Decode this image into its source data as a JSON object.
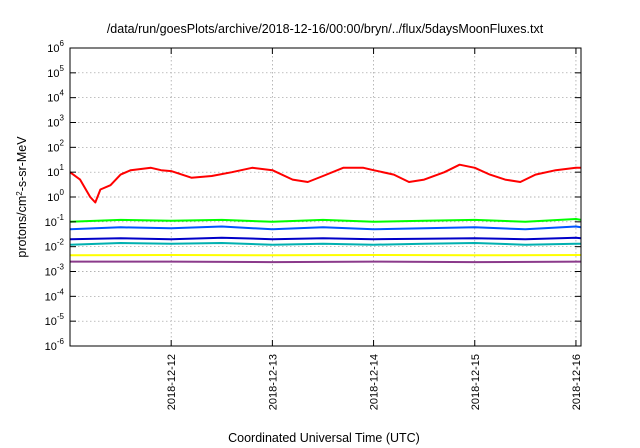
{
  "chart_data": {
    "type": "line",
    "title": "/data/run/goesPlots/archive/2018-12-16/00:00/bryn/../flux/5daysMoonFluxes.txt",
    "xlabel": "Coordinated Universal Time (UTC)",
    "ylabel": {
      "prefix": "protons/cm",
      "sup": "2",
      "suffix": "-s-sr-MeV"
    },
    "yscale": "log",
    "ylim_exp": [
      -6,
      6
    ],
    "y_ticks": [
      {
        "base": "10",
        "exp": "-6",
        "e": -6
      },
      {
        "base": "10",
        "exp": "-5",
        "e": -5
      },
      {
        "base": "10",
        "exp": "-4",
        "e": -4
      },
      {
        "base": "10",
        "exp": "-3",
        "e": -3
      },
      {
        "base": "10",
        "exp": "-2",
        "e": -2
      },
      {
        "base": "10",
        "exp": "-1",
        "e": -1
      },
      {
        "base": "10",
        "exp": "0",
        "e": 0
      },
      {
        "base": "10",
        "exp": "1",
        "e": 1
      },
      {
        "base": "10",
        "exp": "2",
        "e": 2
      },
      {
        "base": "10",
        "exp": "3",
        "e": 3
      },
      {
        "base": "10",
        "exp": "4",
        "e": 4
      },
      {
        "base": "10",
        "exp": "5",
        "e": 5
      },
      {
        "base": "10",
        "exp": "6",
        "e": 6
      }
    ],
    "xlim_days": [
      0,
      5.05
    ],
    "x_ticks": [
      {
        "label": "2018-12-12",
        "d": 1
      },
      {
        "label": "2018-12-13",
        "d": 2
      },
      {
        "label": "2018-12-14",
        "d": 3
      },
      {
        "label": "2018-12-15",
        "d": 4
      },
      {
        "label": "2018-12-16",
        "d": 5
      }
    ],
    "grid": true,
    "series": [
      {
        "color": "#ff0000",
        "points": [
          [
            0,
            10.0
          ],
          [
            0.1,
            5.0
          ],
          [
            0.2,
            1.0
          ],
          [
            0.25,
            0.6
          ],
          [
            0.3,
            2.0
          ],
          [
            0.4,
            3.0
          ],
          [
            0.5,
            8.0
          ],
          [
            0.6,
            12.0
          ],
          [
            0.8,
            15.0
          ],
          [
            0.9,
            12.0
          ],
          [
            1.0,
            11.0
          ],
          [
            1.2,
            6.0
          ],
          [
            1.4,
            7.0
          ],
          [
            1.6,
            10.0
          ],
          [
            1.8,
            15.0
          ],
          [
            2.0,
            12.0
          ],
          [
            2.2,
            5.0
          ],
          [
            2.35,
            4.0
          ],
          [
            2.5,
            7.0
          ],
          [
            2.7,
            15.0
          ],
          [
            2.9,
            15.0
          ],
          [
            3.0,
            12.0
          ],
          [
            3.2,
            8.0
          ],
          [
            3.35,
            4.0
          ],
          [
            3.5,
            5.0
          ],
          [
            3.7,
            10.0
          ],
          [
            3.85,
            20.0
          ],
          [
            4.0,
            15.0
          ],
          [
            4.15,
            8.0
          ],
          [
            4.3,
            5.0
          ],
          [
            4.45,
            4.0
          ],
          [
            4.6,
            8.0
          ],
          [
            4.8,
            12.0
          ],
          [
            5.0,
            15.0
          ],
          [
            5.05,
            15.0
          ]
        ]
      },
      {
        "color": "#00ff00",
        "points": [
          [
            0,
            0.1
          ],
          [
            0.5,
            0.12
          ],
          [
            1.0,
            0.11
          ],
          [
            1.5,
            0.12
          ],
          [
            2.0,
            0.1
          ],
          [
            2.5,
            0.12
          ],
          [
            3.0,
            0.1
          ],
          [
            3.5,
            0.11
          ],
          [
            4.0,
            0.12
          ],
          [
            4.5,
            0.1
          ],
          [
            5.0,
            0.13
          ],
          [
            5.05,
            0.12
          ]
        ]
      },
      {
        "color": "#0055ff",
        "points": [
          [
            0,
            0.05
          ],
          [
            0.5,
            0.06
          ],
          [
            1.0,
            0.055
          ],
          [
            1.5,
            0.065
          ],
          [
            2.0,
            0.05
          ],
          [
            2.5,
            0.06
          ],
          [
            3.0,
            0.05
          ],
          [
            3.5,
            0.055
          ],
          [
            4.0,
            0.06
          ],
          [
            4.5,
            0.05
          ],
          [
            5.0,
            0.065
          ],
          [
            5.05,
            0.06
          ]
        ]
      },
      {
        "color": "#00b0b0",
        "points": [
          [
            0,
            0.012
          ],
          [
            0.5,
            0.014
          ],
          [
            1.0,
            0.013
          ],
          [
            1.5,
            0.014
          ],
          [
            2.0,
            0.012
          ],
          [
            2.5,
            0.013
          ],
          [
            3.0,
            0.012
          ],
          [
            3.5,
            0.013
          ],
          [
            4.0,
            0.014
          ],
          [
            4.5,
            0.012
          ],
          [
            5.0,
            0.013
          ],
          [
            5.05,
            0.013
          ]
        ]
      },
      {
        "color": "#0000c8",
        "points": [
          [
            0,
            0.02
          ],
          [
            0.5,
            0.022
          ],
          [
            1.0,
            0.02
          ],
          [
            1.5,
            0.023
          ],
          [
            2.0,
            0.02
          ],
          [
            2.5,
            0.022
          ],
          [
            3.0,
            0.02
          ],
          [
            3.5,
            0.021
          ],
          [
            4.0,
            0.022
          ],
          [
            4.5,
            0.02
          ],
          [
            5.0,
            0.023
          ],
          [
            5.05,
            0.022
          ]
        ]
      },
      {
        "color": "#ffff00",
        "points": [
          [
            0,
            0.0045
          ],
          [
            1.0,
            0.0046
          ],
          [
            2.0,
            0.0045
          ],
          [
            3.0,
            0.0046
          ],
          [
            4.0,
            0.0045
          ],
          [
            5.05,
            0.0046
          ]
        ]
      },
      {
        "color": "#8b3a8b",
        "points": [
          [
            0,
            0.0025
          ],
          [
            1.0,
            0.0025
          ],
          [
            2.0,
            0.0024
          ],
          [
            3.0,
            0.0025
          ],
          [
            4.0,
            0.0024
          ],
          [
            5.05,
            0.0025
          ]
        ]
      }
    ]
  }
}
